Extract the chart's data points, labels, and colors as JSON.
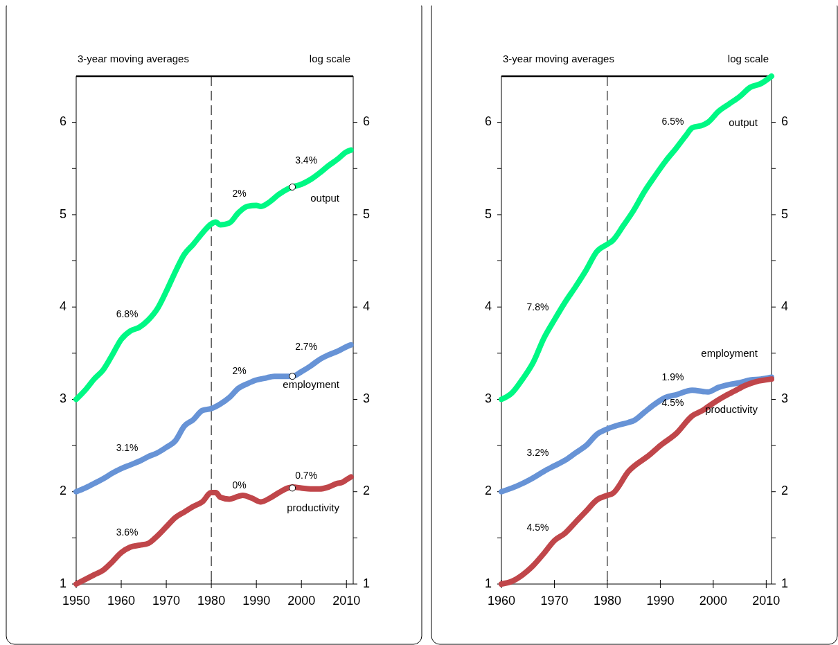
{
  "chart_data": [
    {
      "type": "line",
      "annotations": [
        "3-year moving averages",
        "log scale",
        "6.8%",
        "3.1%",
        "3.6%",
        "2%",
        "2%",
        "0%",
        "3.4%",
        "2.7%",
        "0.7%"
      ],
      "xlim": [
        1950,
        2011.5
      ],
      "xticks": [
        1950,
        1960,
        1970,
        1980,
        1990,
        2000,
        2010
      ],
      "ylim": [
        1,
        6.5
      ],
      "yticks": [
        1,
        {
          "value": 1.5,
          "label": null
        },
        2,
        {
          "value": 2.5,
          "label": null
        },
        3,
        {
          "value": 3.5,
          "label": null
        },
        4,
        {
          "value": 4.5,
          "label": null
        },
        5,
        {
          "value": 5.5,
          "label": null
        },
        6
      ],
      "y2lim": [
        1,
        6.5
      ],
      "y2ticks": [
        1,
        {
          "value": 1.5,
          "label": null
        },
        2,
        {
          "value": 2.5,
          "label": null
        },
        3,
        {
          "value": 3.5,
          "label": null
        },
        4,
        {
          "value": 4.5,
          "label": null
        },
        5,
        {
          "value": 5.5,
          "label": null
        },
        6
      ],
      "ref_lines": [
        {
          "axis": "x",
          "value": 1980,
          "line_style": "dashed",
          "color": "#000000"
        }
      ],
      "series": [
        {
          "name": "output",
          "color": "#00f884",
          "x": [
            1950,
            1952,
            1954,
            1956,
            1958,
            1960,
            1962,
            1964,
            1966,
            1968,
            1970,
            1972,
            1974,
            1976,
            1978,
            1980,
            1981,
            1982,
            1984,
            1986,
            1988,
            1990,
            1991,
            1993,
            1995,
            1997,
            1998,
            2000,
            2002,
            2004,
            2006,
            2008,
            2010,
            2011
          ],
          "values": [
            3.0,
            3.1,
            3.22,
            3.32,
            3.48,
            3.65,
            3.74,
            3.78,
            3.86,
            3.98,
            4.17,
            4.38,
            4.57,
            4.68,
            4.8,
            4.9,
            4.92,
            4.89,
            4.91,
            5.02,
            5.09,
            5.1,
            5.09,
            5.14,
            5.22,
            5.28,
            5.3,
            5.33,
            5.38,
            5.45,
            5.53,
            5.6,
            5.68,
            5.7
          ]
        },
        {
          "name": "employment",
          "color": "#6793d6",
          "x": [
            1950,
            1952,
            1954,
            1956,
            1958,
            1960,
            1962,
            1964,
            1966,
            1968,
            1970,
            1972,
            1974,
            1976,
            1978,
            1980,
            1982,
            1984,
            1986,
            1988,
            1990,
            1992,
            1994,
            1996,
            1998,
            2000,
            2002,
            2004,
            2006,
            2008,
            2010,
            2011
          ],
          "values": [
            2.0,
            2.04,
            2.09,
            2.14,
            2.2,
            2.25,
            2.29,
            2.33,
            2.38,
            2.42,
            2.48,
            2.55,
            2.71,
            2.78,
            2.88,
            2.9,
            2.95,
            3.02,
            3.12,
            3.17,
            3.21,
            3.23,
            3.25,
            3.25,
            3.25,
            3.3,
            3.36,
            3.43,
            3.48,
            3.52,
            3.57,
            3.59
          ]
        },
        {
          "name": "productivity",
          "color": "#c0464a",
          "x": [
            1950,
            1952,
            1954,
            1956,
            1958,
            1960,
            1962,
            1964,
            1966,
            1968,
            1970,
            1972,
            1974,
            1976,
            1978,
            1980,
            1981,
            1982,
            1984,
            1986,
            1987,
            1989,
            1991,
            1993,
            1995,
            1997,
            1998,
            2000,
            2002,
            2004,
            2006,
            2008,
            2009,
            2010,
            2011
          ],
          "values": [
            1.0,
            1.05,
            1.1,
            1.15,
            1.24,
            1.34,
            1.4,
            1.42,
            1.44,
            1.52,
            1.62,
            1.72,
            1.78,
            1.84,
            1.89,
            1.99,
            1.99,
            1.94,
            1.92,
            1.95,
            1.96,
            1.93,
            1.89,
            1.93,
            1.99,
            2.04,
            2.05,
            2.04,
            2.03,
            2.03,
            2.05,
            2.09,
            2.1,
            2.13,
            2.16
          ]
        },
        {
          "type": "scatter",
          "marker": "circle",
          "color": "#ffffff",
          "x": [
            1998,
            1998,
            1998
          ],
          "values": [
            5.3,
            3.25,
            2.04
          ]
        }
      ]
    },
    {
      "type": "line",
      "annotations": [
        "3-year moving averages",
        "log scale",
        "7.8%",
        "3.2%",
        "4.5%",
        "6.5%",
        "1.9%",
        "4.5%"
      ],
      "xlim": [
        1960,
        2011
      ],
      "xticks": [
        1960,
        1970,
        1980,
        1990,
        2000,
        2010
      ],
      "ylim": [
        1,
        6.5
      ],
      "yticks": [
        1,
        {
          "value": 1.5,
          "label": null
        },
        2,
        {
          "value": 2.5,
          "label": null
        },
        3,
        {
          "value": 3.5,
          "label": null
        },
        4,
        {
          "value": 4.5,
          "label": null
        },
        5,
        {
          "value": 5.5,
          "label": null
        },
        6
      ],
      "y2lim": [
        1,
        6.5
      ],
      "y2ticks": [
        1,
        {
          "value": 1.5,
          "label": null
        },
        2,
        {
          "value": 2.5,
          "label": null
        },
        3,
        {
          "value": 3.5,
          "label": null
        },
        4,
        {
          "value": 4.5,
          "label": null
        },
        5,
        {
          "value": 5.5,
          "label": null
        },
        6
      ],
      "ref_lines": [
        {
          "axis": "x",
          "value": 1980,
          "line_style": "dashed",
          "color": "#000000"
        }
      ],
      "series": [
        {
          "name": "output",
          "color": "#00f884",
          "x": [
            1960,
            1962,
            1964,
            1966,
            1968,
            1970,
            1972,
            1974,
            1976,
            1978,
            1980,
            1981,
            1983,
            1985,
            1987,
            1989,
            1991,
            1993,
            1995,
            1996,
            1998,
            1999,
            2001,
            2003,
            2005,
            2007,
            2009,
            2011
          ],
          "values": [
            3.0,
            3.07,
            3.22,
            3.4,
            3.66,
            3.86,
            4.05,
            4.22,
            4.4,
            4.6,
            4.68,
            4.72,
            4.88,
            5.05,
            5.25,
            5.42,
            5.58,
            5.72,
            5.87,
            5.94,
            5.97,
            6.0,
            6.12,
            6.2,
            6.28,
            6.38,
            6.42,
            6.5
          ]
        },
        {
          "name": "employment",
          "color": "#6793d6",
          "x": [
            1960,
            1962,
            1964,
            1966,
            1968,
            1970,
            1972,
            1974,
            1976,
            1978,
            1980,
            1982,
            1984,
            1985,
            1987,
            1989,
            1991,
            1993,
            1996,
            1999,
            2001,
            2003,
            2005,
            2007,
            2009,
            2011
          ],
          "values": [
            2.0,
            2.04,
            2.09,
            2.15,
            2.22,
            2.28,
            2.34,
            2.42,
            2.5,
            2.62,
            2.68,
            2.72,
            2.75,
            2.77,
            2.86,
            2.95,
            3.02,
            3.05,
            3.1,
            3.08,
            3.13,
            3.16,
            3.18,
            3.21,
            3.22,
            3.24
          ]
        },
        {
          "name": "productivity",
          "color": "#c0464a",
          "x": [
            1960,
            1962,
            1964,
            1966,
            1968,
            1970,
            1972,
            1974,
            1976,
            1978,
            1980,
            1981,
            1984,
            1988,
            1990,
            1993,
            1996,
            1998,
            2000,
            2002,
            2004,
            2006,
            2008,
            2011
          ],
          "values": [
            1.0,
            1.03,
            1.1,
            1.2,
            1.33,
            1.47,
            1.55,
            1.67,
            1.79,
            1.91,
            1.96,
            1.98,
            2.22,
            2.4,
            2.5,
            2.63,
            2.82,
            2.88,
            2.96,
            3.03,
            3.09,
            3.15,
            3.19,
            3.22
          ]
        }
      ]
    }
  ]
}
